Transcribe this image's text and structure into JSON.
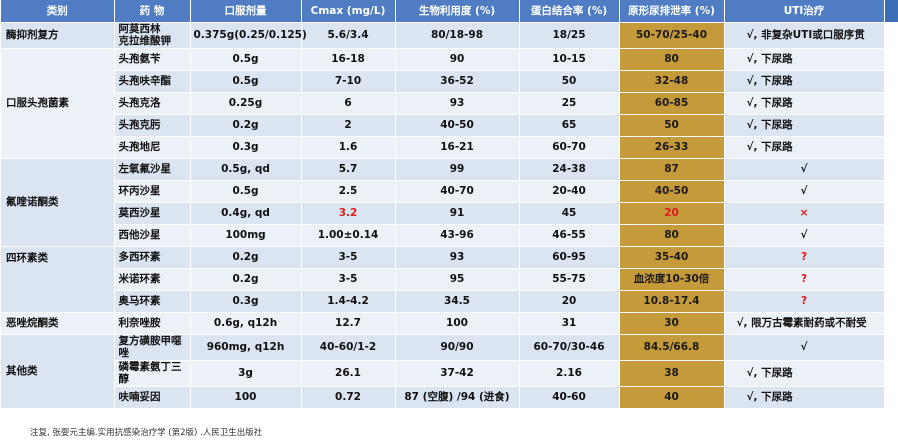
{
  "headers": [
    "类别",
    "药 物",
    "口服剂量",
    "Cmax (mg/L)",
    "生物利用度 (%)",
    "蛋白结合率 (%)",
    "原形尿排泄率 (%)",
    "UTI治疗"
  ],
  "groups": {
    "g1": "酶抑剂复方",
    "g2": "口服头孢菌素",
    "g3": "氟喹诺酮类",
    "g4": "四环素类",
    "g5": "恶唑烷酮类",
    "g6": "其他类"
  },
  "rows": [
    {
      "drug": "阿莫西林\n克拉维酸钾",
      "dose": "0.375g(0.25/0.125)",
      "cmax": "5.6/3.4",
      "bio": "80/18-98",
      "pb": "18/25",
      "urine": "50-70/25-40",
      "uti": "√, 非复杂UTI或口服序贯"
    },
    {
      "drug": "头孢氨苄",
      "dose": "0.5g",
      "cmax": "16-18",
      "bio": "90",
      "pb": "10-15",
      "urine": "80",
      "uti": "√, 下尿路"
    },
    {
      "drug": "头孢呋辛酯",
      "dose": "0.5g",
      "cmax": "7-10",
      "bio": "36-52",
      "pb": "50",
      "urine": "32-48",
      "uti": "√, 下尿路"
    },
    {
      "drug": "头孢克洛",
      "dose": "0.25g",
      "cmax": "6",
      "bio": "93",
      "pb": "25",
      "urine": "60-85",
      "uti": "√, 下尿路"
    },
    {
      "drug": "头孢克肟",
      "dose": "0.2g",
      "cmax": "2",
      "bio": "40-50",
      "pb": "65",
      "urine": "50",
      "uti": "√, 下尿路"
    },
    {
      "drug": "头孢地尼",
      "dose": "0.3g",
      "cmax": "1.6",
      "bio": "16-21",
      "pb": "60-70",
      "urine": "26-33",
      "uti": "√, 下尿路"
    },
    {
      "drug": "左氧氟沙星",
      "dose": "0.5g, qd",
      "cmax": "5.7",
      "bio": "99",
      "pb": "24-38",
      "urine": "87",
      "uti": "√"
    },
    {
      "drug": "环丙沙星",
      "dose": "0.5g",
      "cmax": "2.5",
      "bio": "40-70",
      "pb": "20-40",
      "urine": "40-50",
      "uti": "√"
    },
    {
      "drug": "莫西沙星",
      "dose": "0.4g, qd",
      "cmax": "3.2",
      "bio": "91",
      "pb": "45",
      "urine": "20",
      "uti": "×"
    },
    {
      "drug": "西他沙星",
      "dose": "100mg",
      "cmax": "1.00±0.14",
      "bio": "43-96",
      "pb": "46-55",
      "urine": "80",
      "uti": "√"
    },
    {
      "drug": "多西环素",
      "dose": "0.2g",
      "cmax": "3-5",
      "bio": "93",
      "pb": "60-95",
      "urine": "35-40",
      "uti": "?"
    },
    {
      "drug": "米诺环素",
      "dose": "0.2g",
      "cmax": "3-5",
      "bio": "95",
      "pb": "55-75",
      "urine": "血浓度10-30倍",
      "uti": "?"
    },
    {
      "drug": "奥马环素",
      "dose": "0.3g",
      "cmax": "1.4-4.2",
      "bio": "34.5",
      "pb": "20",
      "urine": "10.8-17.4",
      "uti": "?"
    },
    {
      "drug": "利奈唑胺",
      "dose": "0.6g, q12h",
      "cmax": "12.7",
      "bio": "100",
      "pb": "31",
      "urine": "30",
      "uti": "√, 限万古霉素耐药或不耐受"
    },
    {
      "drug": "复方磺胺甲噁唑",
      "dose": "960mg, q12h",
      "cmax": "40-60/1-2",
      "bio": "90/90",
      "pb": "60-70/30-46",
      "urine": "84.5/66.8",
      "uti": "√"
    },
    {
      "drug": "磷霉素氨丁三醇",
      "dose": "3g",
      "cmax": "26.1",
      "bio": "37-42",
      "pb": "2.16",
      "urine": "38",
      "uti": "√, 下尿路"
    },
    {
      "drug": "呋喃妥因",
      "dose": "100",
      "cmax": "0.72",
      "bio": "87 (空腹) /94 (进食)",
      "pb": "40-60",
      "urine": "40",
      "uti": "√, 下尿路"
    }
  ],
  "footnote": "注复, 张婴元主编.实用抗感染治疗学 (第2版) .人民卫生出版社"
}
